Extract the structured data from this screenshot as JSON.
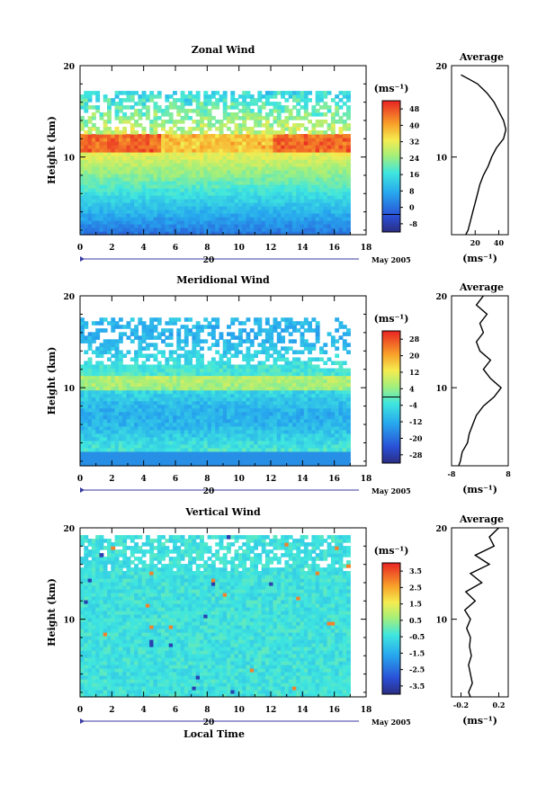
{
  "chart_data": [
    {
      "type": "heatmap",
      "title": "Zonal Wind",
      "xlabel": "",
      "ylabel": "Height (km)",
      "xlim": [
        0,
        18
      ],
      "ylim": [
        1.5,
        20
      ],
      "x_ticks": [
        "0",
        "2",
        "4",
        "6",
        "8",
        "10",
        "12",
        "14",
        "16",
        "18"
      ],
      "y_ticks": [
        "10",
        "20"
      ],
      "date_day": "20",
      "date_month": "May 2005",
      "colorbar": {
        "unit": "(ms⁻¹)",
        "range": [
          -8,
          52
        ],
        "levels": [
          "48",
          "40",
          "32",
          "24",
          "16",
          "8",
          "0",
          "-8"
        ],
        "contour_at": 0
      },
      "profile": {
        "title": "Average",
        "xlabel": "(ms⁻¹)",
        "xlim": [
          0,
          48
        ],
        "x_ticks": [
          "20",
          "40"
        ],
        "y_ticks": [
          "10",
          "20"
        ],
        "height_km": [
          1.5,
          2,
          3,
          4,
          5,
          6,
          7,
          8,
          9,
          10,
          11,
          12,
          13,
          14,
          15,
          16,
          17,
          18,
          18.5,
          19
        ],
        "values": [
          12,
          14,
          16,
          18,
          20,
          22,
          24,
          27,
          31,
          34,
          38,
          44,
          46,
          44,
          40,
          36,
          30,
          22,
          15,
          8
        ]
      }
    },
    {
      "type": "heatmap",
      "title": "Meridional Wind",
      "xlabel": "",
      "ylabel": "Height (km)",
      "xlim": [
        0,
        18
      ],
      "ylim": [
        1.5,
        20
      ],
      "x_ticks": [
        "0",
        "2",
        "4",
        "6",
        "8",
        "10",
        "12",
        "14",
        "16",
        "18"
      ],
      "y_ticks": [
        "10",
        "20"
      ],
      "date_day": "20",
      "date_month": "May 2005",
      "colorbar": {
        "unit": "(ms⁻¹)",
        "range": [
          -28,
          28
        ],
        "levels": [
          "28",
          "20",
          "12",
          "4",
          "-4",
          "-12",
          "-20",
          "-28"
        ],
        "contour_at": 0
      },
      "profile": {
        "title": "Average",
        "xlabel": "(ms⁻¹)",
        "xlim": [
          -8,
          8
        ],
        "x_ticks": [
          "-8",
          "8"
        ],
        "y_ticks": [
          "10",
          "20"
        ],
        "height_km": [
          1.5,
          2,
          3,
          4,
          5,
          6,
          7,
          8,
          9,
          10,
          11,
          12,
          13,
          14,
          15,
          16,
          17,
          18,
          19,
          20
        ],
        "values": [
          -6,
          -5.5,
          -5,
          -3.5,
          -3,
          -2,
          -1,
          1,
          4,
          6,
          3,
          1,
          3,
          0,
          -1,
          1,
          0,
          2,
          -1,
          1
        ]
      }
    },
    {
      "type": "heatmap",
      "title": "Vertical Wind",
      "xlabel": "Local Time",
      "ylabel": "Height (km)",
      "xlim": [
        0,
        18
      ],
      "ylim": [
        1.5,
        20
      ],
      "x_ticks": [
        "0",
        "2",
        "4",
        "6",
        "8",
        "10",
        "12",
        "14",
        "16",
        "18"
      ],
      "y_ticks": [
        "10",
        "20"
      ],
      "date_day": "20",
      "date_month": "May 2005",
      "colorbar": {
        "unit": "(ms⁻¹)",
        "range": [
          -3.5,
          4
        ],
        "levels": [
          "3.5",
          "2.5",
          "1.5",
          "0.5",
          "-0.5",
          "-1.5",
          "-2.5",
          "-3.5"
        ]
      },
      "profile": {
        "title": "Average",
        "xlabel": "(ms⁻¹)",
        "xlim": [
          -0.3,
          0.3
        ],
        "x_ticks": [
          "-0.2",
          "0.2"
        ],
        "y_ticks": [
          "10",
          "20"
        ],
        "height_km": [
          1.5,
          2,
          3,
          4,
          5,
          6,
          7,
          8,
          9,
          10,
          11,
          12,
          13,
          14,
          15,
          16,
          17,
          18,
          19,
          20
        ],
        "values": [
          -0.1,
          -0.12,
          -0.08,
          -0.1,
          -0.12,
          -0.09,
          -0.11,
          -0.1,
          -0.14,
          -0.1,
          -0.16,
          -0.05,
          -0.15,
          0.02,
          -0.1,
          0.1,
          -0.05,
          0.15,
          0.1,
          0.2
        ]
      }
    }
  ]
}
